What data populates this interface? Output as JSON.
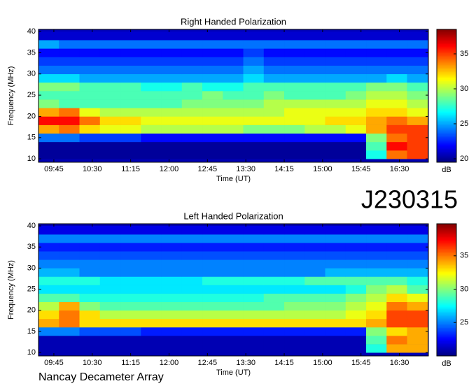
{
  "chart_data": [
    {
      "type": "heatmap",
      "title": "Right Handed Polarization",
      "xlabel": "Time (UT)",
      "ylabel": "Frequency (MHz)",
      "colorbar_label": "dB",
      "colormap": "jet",
      "xlim": [
        567,
        1024
      ],
      "ylim": [
        9.2,
        40.5
      ],
      "clim": [
        19.5,
        38.5
      ],
      "xticks": [
        {
          "value": 585,
          "label": "09:45"
        },
        {
          "value": 630,
          "label": "10:30"
        },
        {
          "value": 675,
          "label": "11:15"
        },
        {
          "value": 720,
          "label": "12:00"
        },
        {
          "value": 765,
          "label": "12:45"
        },
        {
          "value": 810,
          "label": "13:30"
        },
        {
          "value": 855,
          "label": "14:15"
        },
        {
          "value": 900,
          "label": "15:00"
        },
        {
          "value": 945,
          "label": "15:45"
        },
        {
          "value": 990,
          "label": "16:30"
        }
      ],
      "yticks": [
        10,
        15,
        20,
        25,
        30,
        35,
        40
      ],
      "cticks": [
        20,
        25,
        30,
        35
      ],
      "xbins": [
        567,
        591,
        615,
        639,
        663,
        687,
        711,
        735,
        759,
        783,
        807,
        831,
        855,
        879,
        903,
        927,
        951,
        975,
        999,
        1023
      ],
      "ybins": [
        10,
        12,
        14,
        16,
        18,
        20,
        22,
        24,
        26,
        28,
        30,
        32,
        34,
        36,
        38,
        40
      ],
      "z": [
        [
          20,
          20,
          20,
          20,
          20,
          20,
          20,
          20,
          20,
          20,
          20,
          20,
          20,
          20,
          20,
          20,
          27,
          34,
          35
        ],
        [
          20,
          20,
          20,
          20,
          20,
          20,
          20,
          20,
          20,
          20,
          20,
          20,
          20,
          20,
          20,
          20,
          28,
          36,
          35
        ],
        [
          24,
          24,
          23,
          23,
          23,
          22,
          22,
          22,
          22,
          22,
          22,
          22,
          22,
          22,
          22,
          22,
          29,
          34,
          35
        ],
        [
          33,
          34,
          32,
          31,
          31,
          30,
          30,
          30,
          30,
          30,
          29,
          29,
          29,
          30,
          30,
          31,
          33,
          35,
          35
        ],
        [
          36,
          36,
          34,
          32,
          32,
          31,
          31,
          31,
          31,
          31,
          31,
          31,
          31,
          31,
          32,
          32,
          33,
          34,
          33
        ],
        [
          33,
          34,
          31,
          30,
          30,
          30,
          30,
          30,
          30,
          30,
          30,
          30,
          31,
          31,
          31,
          31,
          32,
          32,
          31
        ],
        [
          29,
          28,
          28,
          28,
          28,
          28,
          28,
          29,
          29,
          29,
          29,
          30,
          30,
          30,
          30,
          30,
          31,
          31,
          30
        ],
        [
          28,
          28,
          28,
          28,
          28,
          28,
          28,
          28,
          29,
          28,
          28,
          29,
          28,
          28,
          28,
          29,
          30,
          30,
          29
        ],
        [
          29,
          29,
          28,
          28,
          28,
          27,
          27,
          28,
          27,
          27,
          28,
          28,
          28,
          28,
          28,
          28,
          29,
          29,
          28
        ],
        [
          26,
          26,
          25,
          25,
          25,
          25,
          25,
          25,
          25,
          25,
          26,
          25,
          25,
          25,
          25,
          25,
          25,
          26,
          25
        ],
        [
          24,
          24,
          24,
          24,
          24,
          24,
          24,
          24,
          24,
          24,
          25,
          24,
          24,
          24,
          24,
          24,
          24,
          24,
          24
        ],
        [
          23,
          23,
          23,
          23,
          23,
          23,
          23,
          23,
          23,
          23,
          24,
          23,
          23,
          23,
          23,
          23,
          23,
          23,
          23
        ],
        [
          22,
          22,
          22,
          22,
          22,
          22,
          22,
          22,
          22,
          22,
          23,
          22,
          22,
          22,
          22,
          22,
          22,
          22,
          22
        ],
        [
          25,
          24,
          24,
          24,
          24,
          24,
          24,
          24,
          24,
          24,
          24,
          24,
          24,
          24,
          24,
          24,
          24,
          24,
          24
        ],
        [
          21,
          21,
          21,
          21,
          21,
          21,
          21,
          21,
          21,
          21,
          21,
          21,
          21,
          21,
          21,
          21,
          21,
          21,
          21
        ]
      ]
    },
    {
      "type": "heatmap",
      "title": "Left Handed Polarization",
      "xlabel": "Time (UT)",
      "ylabel": "Frequency (MHz)",
      "colorbar_label": "dB",
      "colormap": "jet",
      "xlim": [
        567,
        1024
      ],
      "ylim": [
        9.2,
        40.5
      ],
      "clim": [
        20,
        39.8
      ],
      "xticks": [
        {
          "value": 585,
          "label": "09:45"
        },
        {
          "value": 630,
          "label": "10:30"
        },
        {
          "value": 675,
          "label": "11:15"
        },
        {
          "value": 720,
          "label": "12:00"
        },
        {
          "value": 765,
          "label": "12:45"
        },
        {
          "value": 810,
          "label": "13:30"
        },
        {
          "value": 855,
          "label": "14:15"
        },
        {
          "value": 900,
          "label": "15:00"
        },
        {
          "value": 945,
          "label": "15:45"
        },
        {
          "value": 990,
          "label": "16:30"
        }
      ],
      "yticks": [
        10,
        15,
        20,
        25,
        30,
        35,
        40
      ],
      "cticks": [
        25,
        30,
        35
      ],
      "xbins": [
        567,
        591,
        615,
        639,
        663,
        687,
        711,
        735,
        759,
        783,
        807,
        831,
        855,
        879,
        903,
        927,
        951,
        975,
        999,
        1023
      ],
      "ybins": [
        10,
        12,
        14,
        16,
        18,
        20,
        22,
        24,
        26,
        28,
        30,
        32,
        34,
        36,
        38,
        40
      ],
      "z": [
        [
          21,
          21,
          21,
          21,
          21,
          21,
          21,
          21,
          21,
          21,
          21,
          21,
          21,
          21,
          21,
          21,
          28,
          34,
          34
        ],
        [
          21,
          21,
          21,
          21,
          21,
          21,
          21,
          21,
          21,
          21,
          21,
          21,
          21,
          21,
          21,
          21,
          29,
          35,
          34
        ],
        [
          25,
          25,
          24,
          24,
          24,
          23,
          23,
          23,
          23,
          23,
          23,
          23,
          23,
          23,
          23,
          23,
          30,
          33,
          34
        ],
        [
          34,
          35,
          33,
          33,
          33,
          33,
          33,
          33,
          33,
          33,
          33,
          33,
          33,
          33,
          33,
          33,
          34,
          36,
          36
        ],
        [
          33,
          35,
          33,
          31,
          31,
          31,
          31,
          31,
          31,
          31,
          31,
          31,
          31,
          31,
          31,
          32,
          33,
          36,
          36
        ],
        [
          31,
          34,
          30,
          29,
          29,
          29,
          29,
          29,
          29,
          29,
          29,
          29,
          30,
          30,
          30,
          31,
          32,
          35,
          34
        ],
        [
          29,
          29,
          28,
          28,
          28,
          28,
          28,
          28,
          28,
          28,
          28,
          29,
          29,
          29,
          29,
          30,
          31,
          33,
          32
        ],
        [
          27,
          27,
          27,
          27,
          27,
          27,
          27,
          27,
          27,
          27,
          27,
          27,
          27,
          27,
          27,
          28,
          30,
          31,
          29
        ],
        [
          28,
          28,
          28,
          27,
          27,
          27,
          27,
          27,
          28,
          28,
          28,
          28,
          28,
          29,
          29,
          29,
          29,
          29,
          28
        ],
        [
          26,
          26,
          25,
          25,
          25,
          25,
          25,
          25,
          25,
          25,
          25,
          25,
          25,
          25,
          26,
          26,
          26,
          26,
          26
        ],
        [
          25,
          25,
          25,
          25,
          25,
          25,
          25,
          25,
          25,
          25,
          25,
          25,
          25,
          25,
          25,
          25,
          25,
          25,
          25
        ],
        [
          24,
          24,
          24,
          24,
          24,
          24,
          24,
          24,
          24,
          24,
          24,
          24,
          24,
          24,
          24,
          24,
          24,
          24,
          24
        ],
        [
          23,
          23,
          23,
          23,
          23,
          23,
          23,
          23,
          23,
          23,
          23,
          23,
          23,
          23,
          23,
          23,
          23,
          23,
          23
        ],
        [
          25,
          25,
          25,
          25,
          25,
          25,
          25,
          25,
          25,
          25,
          25,
          25,
          25,
          25,
          25,
          25,
          25,
          25,
          25
        ],
        [
          22,
          22,
          22,
          22,
          22,
          22,
          22,
          22,
          22,
          22,
          22,
          22,
          22,
          22,
          22,
          22,
          22,
          22,
          22
        ]
      ]
    }
  ],
  "observation": "J230315",
  "instrument": "Nancay Decameter Array"
}
